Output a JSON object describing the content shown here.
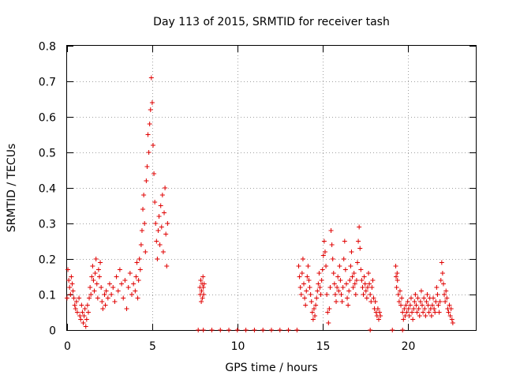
{
  "chart_data": {
    "type": "scatter",
    "title": "Day 113 of 2015, SRMTID for receiver tash",
    "xlabel": "GPS time / hours",
    "ylabel": "SRMTID / TECUs",
    "xlim": [
      0,
      24
    ],
    "ylim": [
      0,
      0.8
    ],
    "x_ticks": [
      0,
      5,
      10,
      15,
      20
    ],
    "y_ticks": [
      0,
      0.1,
      0.2,
      0.3,
      0.4,
      0.5,
      0.6,
      0.7,
      0.8
    ],
    "x_tick_labels": [
      "0",
      "5",
      "10",
      "15",
      "20"
    ],
    "y_tick_labels": [
      "0",
      "0.1",
      "0.2",
      "0.3",
      "0.4",
      "0.5",
      "0.6",
      "0.7",
      "0.8"
    ],
    "grid": true,
    "marker": "+",
    "color": "#e00000",
    "series": [
      {
        "name": "SRMTID",
        "points": [
          [
            0.0,
            0.09
          ],
          [
            0.05,
            0.17
          ],
          [
            0.1,
            0.14
          ],
          [
            0.15,
            0.12
          ],
          [
            0.2,
            0.1
          ],
          [
            0.25,
            0.15
          ],
          [
            0.3,
            0.13
          ],
          [
            0.35,
            0.11
          ],
          [
            0.4,
            0.09
          ],
          [
            0.45,
            0.07
          ],
          [
            0.5,
            0.06
          ],
          [
            0.55,
            0.08
          ],
          [
            0.6,
            0.05
          ],
          [
            0.7,
            0.09
          ],
          [
            0.75,
            0.04
          ],
          [
            0.8,
            0.03
          ],
          [
            0.85,
            0.07
          ],
          [
            0.9,
            0.05
          ],
          [
            0.95,
            0.02
          ],
          [
            1.0,
            0.04
          ],
          [
            1.05,
            0.06
          ],
          [
            1.1,
            0.01
          ],
          [
            1.15,
            0.03
          ],
          [
            1.2,
            0.07
          ],
          [
            1.25,
            0.05
          ],
          [
            1.3,
            0.09
          ],
          [
            1.35,
            0.12
          ],
          [
            1.4,
            0.1
          ],
          [
            1.45,
            0.15
          ],
          [
            1.5,
            0.18
          ],
          [
            1.55,
            0.14
          ],
          [
            1.6,
            0.11
          ],
          [
            1.65,
            0.16
          ],
          [
            1.7,
            0.2
          ],
          [
            1.75,
            0.13
          ],
          [
            1.8,
            0.09
          ],
          [
            1.85,
            0.17
          ],
          [
            1.9,
            0.15
          ],
          [
            1.95,
            0.19
          ],
          [
            2.0,
            0.12
          ],
          [
            2.05,
            0.08
          ],
          [
            2.1,
            0.06
          ],
          [
            2.2,
            0.1
          ],
          [
            2.25,
            0.07
          ],
          [
            2.3,
            0.11
          ],
          [
            2.4,
            0.09
          ],
          [
            2.5,
            0.13
          ],
          [
            2.6,
            0.1
          ],
          [
            2.7,
            0.12
          ],
          [
            2.8,
            0.08
          ],
          [
            2.9,
            0.15
          ],
          [
            3.0,
            0.11
          ],
          [
            3.1,
            0.17
          ],
          [
            3.2,
            0.13
          ],
          [
            3.3,
            0.09
          ],
          [
            3.4,
            0.14
          ],
          [
            3.5,
            0.06
          ],
          [
            3.6,
            0.12
          ],
          [
            3.7,
            0.16
          ],
          [
            3.8,
            0.1
          ],
          [
            3.9,
            0.13
          ],
          [
            4.0,
            0.11
          ],
          [
            4.05,
            0.15
          ],
          [
            4.1,
            0.19
          ],
          [
            4.15,
            0.09
          ],
          [
            4.2,
            0.14
          ],
          [
            4.25,
            0.2
          ],
          [
            4.3,
            0.17
          ],
          [
            4.35,
            0.24
          ],
          [
            4.4,
            0.28
          ],
          [
            4.45,
            0.34
          ],
          [
            4.5,
            0.38
          ],
          [
            4.55,
            0.3
          ],
          [
            4.6,
            0.22
          ],
          [
            4.65,
            0.42
          ],
          [
            4.7,
            0.46
          ],
          [
            4.75,
            0.55
          ],
          [
            4.8,
            0.5
          ],
          [
            4.85,
            0.58
          ],
          [
            4.9,
            0.62
          ],
          [
            4.95,
            0.71
          ],
          [
            5.0,
            0.64
          ],
          [
            5.05,
            0.52
          ],
          [
            5.1,
            0.44
          ],
          [
            5.15,
            0.36
          ],
          [
            5.2,
            0.3
          ],
          [
            5.25,
            0.25
          ],
          [
            5.3,
            0.2
          ],
          [
            5.35,
            0.28
          ],
          [
            5.4,
            0.32
          ],
          [
            5.45,
            0.24
          ],
          [
            5.5,
            0.35
          ],
          [
            5.55,
            0.29
          ],
          [
            5.6,
            0.38
          ],
          [
            5.65,
            0.22
          ],
          [
            5.7,
            0.33
          ],
          [
            5.75,
            0.4
          ],
          [
            5.8,
            0.27
          ],
          [
            5.85,
            0.18
          ],
          [
            5.9,
            0.3
          ],
          [
            7.8,
            0.12
          ],
          [
            7.82,
            0.1
          ],
          [
            7.85,
            0.14
          ],
          [
            7.88,
            0.08
          ],
          [
            7.9,
            0.11
          ],
          [
            7.93,
            0.13
          ],
          [
            7.95,
            0.09
          ],
          [
            7.98,
            0.15
          ],
          [
            8.0,
            0.12
          ],
          [
            8.02,
            0.1
          ],
          [
            8.05,
            0.13
          ],
          [
            7.7,
            0.0
          ],
          [
            8.0,
            0.0
          ],
          [
            8.5,
            0.0
          ],
          [
            9.0,
            0.0
          ],
          [
            9.5,
            0.0
          ],
          [
            10.0,
            0.0
          ],
          [
            10.5,
            0.0
          ],
          [
            11.0,
            0.0
          ],
          [
            11.5,
            0.0
          ],
          [
            12.0,
            0.0
          ],
          [
            12.5,
            0.0
          ],
          [
            13.0,
            0.0
          ],
          [
            13.5,
            0.0
          ],
          [
            17.8,
            0.0
          ],
          [
            19.1,
            0.0
          ],
          [
            19.7,
            0.0
          ],
          [
            13.6,
            0.18
          ],
          [
            13.65,
            0.15
          ],
          [
            13.7,
            0.12
          ],
          [
            13.75,
            0.1
          ],
          [
            13.8,
            0.16
          ],
          [
            13.85,
            0.2
          ],
          [
            13.9,
            0.13
          ],
          [
            13.95,
            0.09
          ],
          [
            14.0,
            0.07
          ],
          [
            14.05,
            0.11
          ],
          [
            14.1,
            0.15
          ],
          [
            14.15,
            0.18
          ],
          [
            14.2,
            0.14
          ],
          [
            14.25,
            0.12
          ],
          [
            14.3,
            0.1
          ],
          [
            14.35,
            0.08
          ],
          [
            14.4,
            0.05
          ],
          [
            14.45,
            0.03
          ],
          [
            14.5,
            0.06
          ],
          [
            14.55,
            0.04
          ],
          [
            14.6,
            0.07
          ],
          [
            14.65,
            0.09
          ],
          [
            14.7,
            0.11
          ],
          [
            14.75,
            0.13
          ],
          [
            14.8,
            0.16
          ],
          [
            14.85,
            0.12
          ],
          [
            14.9,
            0.1
          ],
          [
            14.95,
            0.14
          ],
          [
            15.0,
            0.17
          ],
          [
            15.05,
            0.21
          ],
          [
            15.1,
            0.25
          ],
          [
            15.15,
            0.22
          ],
          [
            15.2,
            0.18
          ],
          [
            15.25,
            0.1
          ],
          [
            15.3,
            0.05
          ],
          [
            15.35,
            0.02
          ],
          [
            15.4,
            0.06
          ],
          [
            15.45,
            0.12
          ],
          [
            15.5,
            0.28
          ],
          [
            15.55,
            0.24
          ],
          [
            15.6,
            0.2
          ],
          [
            15.65,
            0.16
          ],
          [
            15.7,
            0.13
          ],
          [
            15.75,
            0.1
          ],
          [
            15.8,
            0.08
          ],
          [
            15.85,
            0.12
          ],
          [
            15.9,
            0.15
          ],
          [
            15.95,
            0.11
          ],
          [
            16.0,
            0.18
          ],
          [
            16.05,
            0.14
          ],
          [
            16.1,
            0.1
          ],
          [
            16.15,
            0.08
          ],
          [
            16.2,
            0.12
          ],
          [
            16.25,
            0.2
          ],
          [
            16.3,
            0.25
          ],
          [
            16.35,
            0.17
          ],
          [
            16.4,
            0.13
          ],
          [
            16.45,
            0.09
          ],
          [
            16.5,
            0.07
          ],
          [
            16.55,
            0.11
          ],
          [
            16.6,
            0.14
          ],
          [
            16.65,
            0.18
          ],
          [
            16.7,
            0.22
          ],
          [
            16.75,
            0.15
          ],
          [
            16.8,
            0.12
          ],
          [
            16.85,
            0.16
          ],
          [
            16.9,
            0.13
          ],
          [
            16.95,
            0.1
          ],
          [
            17.0,
            0.14
          ],
          [
            17.05,
            0.19
          ],
          [
            17.1,
            0.25
          ],
          [
            17.15,
            0.29
          ],
          [
            17.2,
            0.23
          ],
          [
            17.25,
            0.17
          ],
          [
            17.3,
            0.14
          ],
          [
            17.35,
            0.12
          ],
          [
            17.4,
            0.1
          ],
          [
            17.45,
            0.15
          ],
          [
            17.5,
            0.13
          ],
          [
            17.55,
            0.11
          ],
          [
            17.6,
            0.09
          ],
          [
            17.65,
            0.12
          ],
          [
            17.7,
            0.16
          ],
          [
            17.75,
            0.13
          ],
          [
            17.8,
            0.1
          ],
          [
            17.85,
            0.08
          ],
          [
            17.9,
            0.12
          ],
          [
            17.95,
            0.14
          ],
          [
            18.0,
            0.09
          ],
          [
            18.05,
            0.06
          ],
          [
            18.1,
            0.08
          ],
          [
            18.15,
            0.05
          ],
          [
            18.2,
            0.04
          ],
          [
            18.25,
            0.06
          ],
          [
            18.3,
            0.03
          ],
          [
            18.35,
            0.05
          ],
          [
            18.4,
            0.04
          ],
          [
            19.3,
            0.18
          ],
          [
            19.32,
            0.15
          ],
          [
            19.35,
            0.12
          ],
          [
            19.38,
            0.16
          ],
          [
            19.4,
            0.14
          ],
          [
            19.45,
            0.1
          ],
          [
            19.5,
            0.08
          ],
          [
            19.55,
            0.11
          ],
          [
            19.6,
            0.07
          ],
          [
            19.65,
            0.09
          ],
          [
            19.7,
            0.05
          ],
          [
            19.75,
            0.03
          ],
          [
            19.8,
            0.06
          ],
          [
            19.85,
            0.04
          ],
          [
            19.9,
            0.07
          ],
          [
            19.95,
            0.05
          ],
          [
            20.0,
            0.08
          ],
          [
            20.05,
            0.06
          ],
          [
            20.1,
            0.04
          ],
          [
            20.15,
            0.07
          ],
          [
            20.2,
            0.09
          ],
          [
            20.25,
            0.05
          ],
          [
            20.3,
            0.03
          ],
          [
            20.35,
            0.06
          ],
          [
            20.4,
            0.08
          ],
          [
            20.45,
            0.1
          ],
          [
            20.5,
            0.07
          ],
          [
            20.55,
            0.05
          ],
          [
            20.6,
            0.09
          ],
          [
            20.65,
            0.06
          ],
          [
            20.7,
            0.04
          ],
          [
            20.75,
            0.08
          ],
          [
            20.8,
            0.11
          ],
          [
            20.85,
            0.07
          ],
          [
            20.9,
            0.05
          ],
          [
            20.95,
            0.09
          ],
          [
            21.0,
            0.06
          ],
          [
            21.05,
            0.04
          ],
          [
            21.1,
            0.08
          ],
          [
            21.15,
            0.1
          ],
          [
            21.2,
            0.07
          ],
          [
            21.25,
            0.05
          ],
          [
            21.3,
            0.09
          ],
          [
            21.35,
            0.06
          ],
          [
            21.4,
            0.04
          ],
          [
            21.45,
            0.07
          ],
          [
            21.5,
            0.09
          ],
          [
            21.55,
            0.06
          ],
          [
            21.6,
            0.05
          ],
          [
            21.65,
            0.08
          ],
          [
            21.7,
            0.12
          ],
          [
            21.75,
            0.1
          ],
          [
            21.8,
            0.07
          ],
          [
            21.85,
            0.05
          ],
          [
            21.9,
            0.08
          ],
          [
            21.95,
            0.14
          ],
          [
            22.0,
            0.19
          ],
          [
            22.05,
            0.16
          ],
          [
            22.1,
            0.13
          ],
          [
            22.15,
            0.1
          ],
          [
            22.2,
            0.08
          ],
          [
            22.25,
            0.11
          ],
          [
            22.3,
            0.09
          ],
          [
            22.35,
            0.06
          ],
          [
            22.4,
            0.05
          ],
          [
            22.45,
            0.07
          ],
          [
            22.5,
            0.04
          ],
          [
            22.55,
            0.06
          ],
          [
            22.6,
            0.03
          ],
          [
            22.65,
            0.02
          ]
        ]
      }
    ]
  }
}
